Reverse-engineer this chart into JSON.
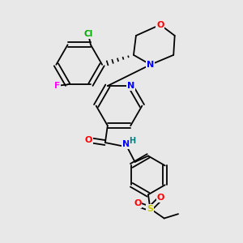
{
  "background_color": "#e8e8e8",
  "bond_color": "#000000",
  "atom_colors": {
    "O": "#ff0000",
    "N": "#0000ff",
    "Cl": "#00aa00",
    "F": "#ff00ff",
    "S": "#cccc00",
    "H": "#008080",
    "C": "#000000"
  },
  "figsize": [
    3.0,
    3.0
  ],
  "dpi": 100
}
